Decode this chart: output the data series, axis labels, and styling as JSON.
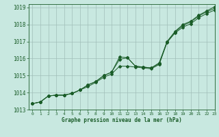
{
  "xlabel": "Graphe pression niveau de la mer (hPa)",
  "xlim": [
    -0.5,
    23
  ],
  "ylim": [
    1013.0,
    1019.2
  ],
  "yticks": [
    1013,
    1014,
    1015,
    1016,
    1017,
    1018,
    1019
  ],
  "xticks": [
    0,
    1,
    2,
    3,
    4,
    5,
    6,
    7,
    8,
    9,
    10,
    11,
    12,
    13,
    14,
    15,
    16,
    17,
    18,
    19,
    20,
    21,
    22,
    23
  ],
  "bg_color": "#c8e8e0",
  "grid_color": "#a0beb8",
  "line_color": "#1a5c28",
  "series1": [
    1013.35,
    1013.45,
    1013.8,
    1013.85,
    1013.85,
    1013.95,
    1014.15,
    1014.35,
    1014.6,
    1014.9,
    1015.1,
    1015.55,
    1015.55,
    1015.5,
    1015.45,
    1015.4,
    1015.65,
    1016.95,
    1017.5,
    1017.85,
    1018.05,
    1018.4,
    1018.65,
    1018.85
  ],
  "series2": [
    1013.35,
    1013.45,
    1013.8,
    1013.85,
    1013.85,
    1013.95,
    1014.15,
    1014.45,
    1014.65,
    1015.0,
    1015.2,
    1015.95,
    1016.05,
    1015.55,
    1015.5,
    1015.45,
    1015.7,
    1017.0,
    1017.55,
    1017.95,
    1018.15,
    1018.5,
    1018.75,
    1018.95
  ],
  "series3": [
    1013.35,
    1013.45,
    1013.8,
    1013.85,
    1013.85,
    1013.95,
    1014.15,
    1014.45,
    1014.65,
    1015.0,
    1015.2,
    1016.1,
    1016.05,
    1015.55,
    1015.5,
    1015.45,
    1015.75,
    1017.0,
    1017.6,
    1018.0,
    1018.2,
    1018.55,
    1018.8,
    1019.05
  ]
}
